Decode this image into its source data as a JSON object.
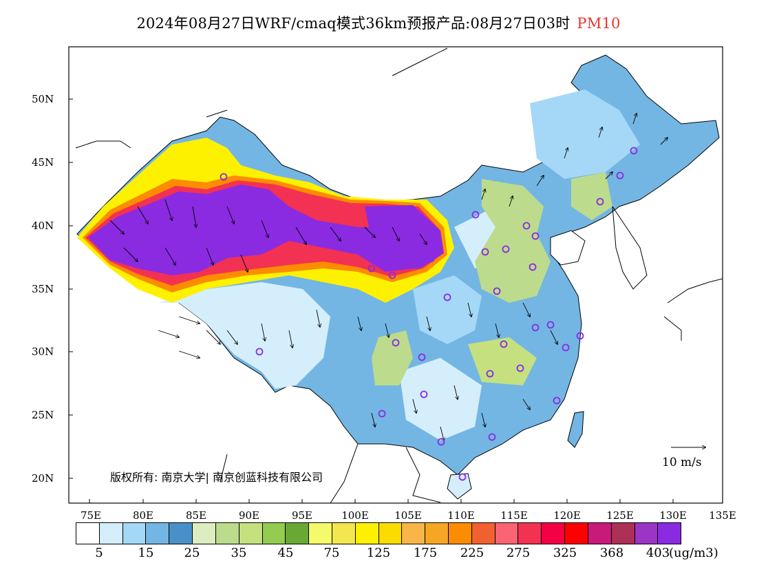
{
  "title": {
    "main": "2024年08月27日WRF/cmaq模式36km预报产品:08月27日03时",
    "variable": "PM10",
    "variable_color": "#e8322c"
  },
  "axes": {
    "lat_labels": [
      "50N",
      "45N",
      "40N",
      "35N",
      "30N",
      "25N",
      "20N"
    ],
    "lon_labels": [
      "75E",
      "80E",
      "85E",
      "90E",
      "95E",
      "100E",
      "105E",
      "110E",
      "115E",
      "120E",
      "125E",
      "130E",
      "135E"
    ],
    "lon_range": [
      73,
      135
    ],
    "lat_range": [
      18,
      54
    ]
  },
  "copyright": "版权所有: 南京大学| 南京创蓝科技有限公司",
  "wind_reference": "10 m/s",
  "legend": {
    "colors": [
      "#ffffff",
      "#d5eefb",
      "#a4d8f6",
      "#73b6e4",
      "#4a90c8",
      "#dcedc0",
      "#bddb8c",
      "#c4e07f",
      "#93cc4e",
      "#6aa836",
      "#f5fa6b",
      "#f3e64e",
      "#fdf100",
      "#fbdc00",
      "#f8b548",
      "#f5a623",
      "#fc8c00",
      "#f06030",
      "#fb6472",
      "#f33152",
      "#f30045",
      "#fe0000",
      "#c81a78",
      "#ad3057",
      "#9b35c5",
      "#8a2be2"
    ],
    "labels": [
      "5",
      "15",
      "25",
      "35",
      "45",
      "75",
      "125",
      "175",
      "225",
      "275",
      "325",
      "368",
      "403"
    ],
    "unit": "(ug/m3)"
  }
}
